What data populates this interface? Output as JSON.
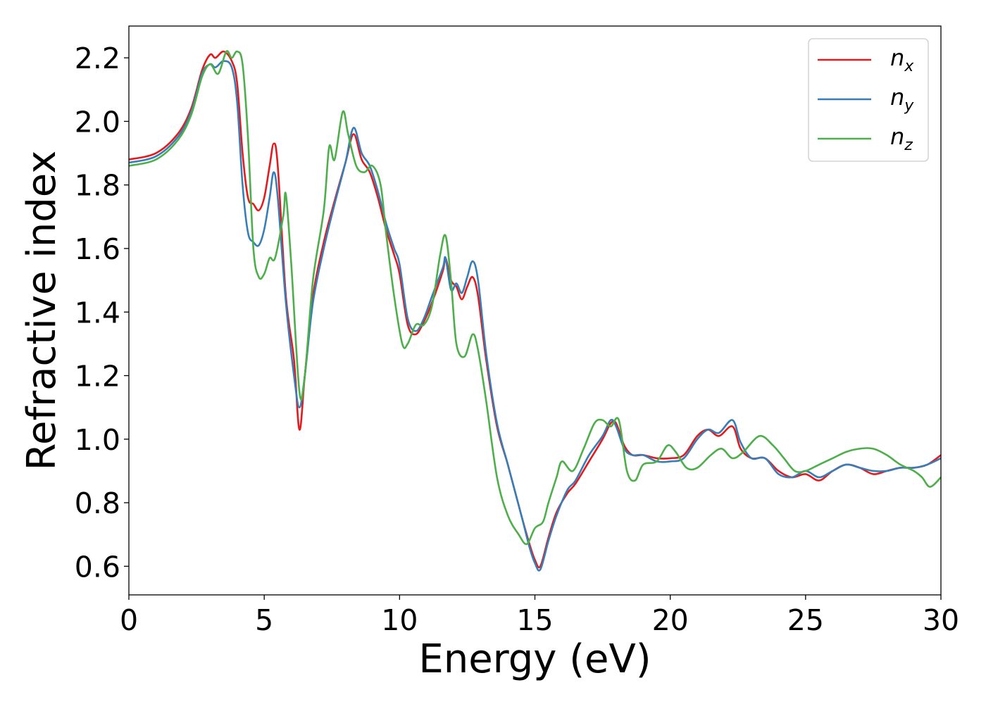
{
  "chart_data": {
    "type": "line",
    "title": "",
    "xlabel": "Energy (eV)",
    "ylabel": "Refractive index",
    "xlim": [
      0,
      30
    ],
    "ylim": [
      0.51,
      2.3
    ],
    "xticks": [
      0,
      5,
      10,
      15,
      20,
      25,
      30
    ],
    "xtick_labels": [
      "0",
      "5",
      "10",
      "15",
      "20",
      "25",
      "30"
    ],
    "yticks": [
      0.6,
      0.8,
      1.0,
      1.2,
      1.4,
      1.6,
      1.8,
      2.0,
      2.2
    ],
    "ytick_labels": [
      "0.6",
      "0.8",
      "1.0",
      "1.2",
      "1.4",
      "1.6",
      "1.8",
      "2.0",
      "2.2"
    ],
    "grid": false,
    "legend_position": "top-right",
    "series": [
      {
        "name": "n_x",
        "legend_base": "n",
        "legend_sub": "x",
        "color": "#e41a1c",
        "points": [
          [
            0,
            1.88
          ],
          [
            1,
            1.9
          ],
          [
            1.8,
            1.96
          ],
          [
            2.3,
            2.04
          ],
          [
            2.7,
            2.16
          ],
          [
            3.0,
            2.21
          ],
          [
            3.2,
            2.2
          ],
          [
            3.5,
            2.22
          ],
          [
            3.8,
            2.19
          ],
          [
            4.0,
            2.12
          ],
          [
            4.2,
            1.9
          ],
          [
            4.4,
            1.76
          ],
          [
            4.6,
            1.74
          ],
          [
            4.8,
            1.72
          ],
          [
            5.0,
            1.76
          ],
          [
            5.2,
            1.86
          ],
          [
            5.35,
            1.93
          ],
          [
            5.5,
            1.86
          ],
          [
            5.8,
            1.45
          ],
          [
            6.1,
            1.25
          ],
          [
            6.3,
            1.03
          ],
          [
            6.5,
            1.2
          ],
          [
            6.8,
            1.45
          ],
          [
            7.2,
            1.62
          ],
          [
            7.6,
            1.75
          ],
          [
            8.0,
            1.87
          ],
          [
            8.3,
            1.96
          ],
          [
            8.6,
            1.88
          ],
          [
            8.9,
            1.84
          ],
          [
            9.2,
            1.76
          ],
          [
            9.5,
            1.66
          ],
          [
            9.8,
            1.58
          ],
          [
            10.0,
            1.52
          ],
          [
            10.3,
            1.36
          ],
          [
            10.6,
            1.33
          ],
          [
            10.9,
            1.37
          ],
          [
            11.2,
            1.43
          ],
          [
            11.6,
            1.53
          ],
          [
            11.7,
            1.57
          ],
          [
            11.9,
            1.5
          ],
          [
            12.1,
            1.48
          ],
          [
            12.3,
            1.44
          ],
          [
            12.5,
            1.48
          ],
          [
            12.7,
            1.51
          ],
          [
            12.9,
            1.45
          ],
          [
            13.2,
            1.25
          ],
          [
            13.6,
            1.04
          ],
          [
            14.0,
            0.92
          ],
          [
            14.5,
            0.76
          ],
          [
            14.8,
            0.67
          ],
          [
            15.0,
            0.62
          ],
          [
            15.2,
            0.6
          ],
          [
            15.5,
            0.69
          ],
          [
            15.8,
            0.77
          ],
          [
            16.2,
            0.83
          ],
          [
            16.5,
            0.86
          ],
          [
            17.0,
            0.93
          ],
          [
            17.5,
            1.0
          ],
          [
            17.8,
            1.05
          ],
          [
            18.0,
            1.05
          ],
          [
            18.3,
            0.98
          ],
          [
            18.6,
            0.95
          ],
          [
            19.0,
            0.95
          ],
          [
            19.5,
            0.94
          ],
          [
            20.0,
            0.94
          ],
          [
            20.5,
            0.95
          ],
          [
            21.0,
            1.01
          ],
          [
            21.4,
            1.03
          ],
          [
            21.8,
            1.01
          ],
          [
            22.3,
            1.04
          ],
          [
            22.6,
            0.97
          ],
          [
            23.0,
            0.94
          ],
          [
            23.5,
            0.94
          ],
          [
            24.0,
            0.9
          ],
          [
            24.5,
            0.88
          ],
          [
            25.0,
            0.89
          ],
          [
            25.5,
            0.87
          ],
          [
            26.0,
            0.9
          ],
          [
            26.5,
            0.92
          ],
          [
            27.0,
            0.91
          ],
          [
            27.5,
            0.89
          ],
          [
            28.0,
            0.9
          ],
          [
            28.5,
            0.91
          ],
          [
            29.0,
            0.91
          ],
          [
            29.5,
            0.92
          ],
          [
            30.0,
            0.95
          ]
        ]
      },
      {
        "name": "n_y",
        "legend_base": "n",
        "legend_sub": "y",
        "color": "#377eb8",
        "points": [
          [
            0,
            1.87
          ],
          [
            1,
            1.89
          ],
          [
            1.8,
            1.95
          ],
          [
            2.3,
            2.03
          ],
          [
            2.7,
            2.15
          ],
          [
            3.0,
            2.18
          ],
          [
            3.2,
            2.17
          ],
          [
            3.5,
            2.19
          ],
          [
            3.8,
            2.17
          ],
          [
            4.0,
            2.06
          ],
          [
            4.2,
            1.8
          ],
          [
            4.4,
            1.65
          ],
          [
            4.6,
            1.62
          ],
          [
            4.8,
            1.61
          ],
          [
            5.0,
            1.66
          ],
          [
            5.2,
            1.76
          ],
          [
            5.35,
            1.84
          ],
          [
            5.5,
            1.76
          ],
          [
            5.8,
            1.43
          ],
          [
            6.1,
            1.2
          ],
          [
            6.3,
            1.1
          ],
          [
            6.5,
            1.2
          ],
          [
            6.8,
            1.43
          ],
          [
            7.2,
            1.6
          ],
          [
            7.6,
            1.74
          ],
          [
            8.0,
            1.87
          ],
          [
            8.3,
            1.98
          ],
          [
            8.6,
            1.9
          ],
          [
            8.9,
            1.86
          ],
          [
            9.2,
            1.78
          ],
          [
            9.5,
            1.68
          ],
          [
            9.8,
            1.6
          ],
          [
            10.0,
            1.55
          ],
          [
            10.3,
            1.38
          ],
          [
            10.6,
            1.34
          ],
          [
            10.9,
            1.38
          ],
          [
            11.2,
            1.45
          ],
          [
            11.6,
            1.54
          ],
          [
            11.7,
            1.57
          ],
          [
            11.9,
            1.47
          ],
          [
            12.1,
            1.49
          ],
          [
            12.3,
            1.46
          ],
          [
            12.5,
            1.51
          ],
          [
            12.7,
            1.56
          ],
          [
            12.9,
            1.5
          ],
          [
            13.2,
            1.27
          ],
          [
            13.6,
            1.05
          ],
          [
            14.0,
            0.92
          ],
          [
            14.5,
            0.76
          ],
          [
            14.8,
            0.66
          ],
          [
            15.0,
            0.61
          ],
          [
            15.2,
            0.59
          ],
          [
            15.5,
            0.68
          ],
          [
            15.8,
            0.76
          ],
          [
            16.2,
            0.84
          ],
          [
            16.5,
            0.87
          ],
          [
            17.0,
            0.95
          ],
          [
            17.5,
            1.01
          ],
          [
            17.8,
            1.06
          ],
          [
            18.0,
            1.04
          ],
          [
            18.3,
            0.97
          ],
          [
            18.6,
            0.95
          ],
          [
            19.0,
            0.95
          ],
          [
            19.5,
            0.93
          ],
          [
            20.0,
            0.93
          ],
          [
            20.5,
            0.94
          ],
          [
            21.0,
            1.0
          ],
          [
            21.4,
            1.03
          ],
          [
            21.8,
            1.02
          ],
          [
            22.3,
            1.06
          ],
          [
            22.6,
            0.99
          ],
          [
            23.0,
            0.94
          ],
          [
            23.5,
            0.94
          ],
          [
            24.0,
            0.89
          ],
          [
            24.5,
            0.88
          ],
          [
            25.0,
            0.9
          ],
          [
            25.5,
            0.88
          ],
          [
            26.0,
            0.9
          ],
          [
            26.5,
            0.92
          ],
          [
            27.0,
            0.91
          ],
          [
            27.5,
            0.9
          ],
          [
            28.0,
            0.9
          ],
          [
            28.5,
            0.91
          ],
          [
            29.0,
            0.91
          ],
          [
            29.5,
            0.92
          ],
          [
            30.0,
            0.94
          ]
        ]
      },
      {
        "name": "n_z",
        "legend_base": "n",
        "legend_sub": "z",
        "color": "#4daf4a",
        "points": [
          [
            0,
            1.86
          ],
          [
            1,
            1.88
          ],
          [
            1.8,
            1.94
          ],
          [
            2.3,
            2.02
          ],
          [
            2.7,
            2.14
          ],
          [
            3.0,
            2.18
          ],
          [
            3.3,
            2.15
          ],
          [
            3.6,
            2.22
          ],
          [
            3.8,
            2.2
          ],
          [
            4.0,
            2.22
          ],
          [
            4.2,
            2.18
          ],
          [
            4.4,
            1.95
          ],
          [
            4.6,
            1.6
          ],
          [
            4.8,
            1.51
          ],
          [
            5.0,
            1.52
          ],
          [
            5.2,
            1.57
          ],
          [
            5.4,
            1.57
          ],
          [
            5.7,
            1.7
          ],
          [
            5.8,
            1.77
          ],
          [
            6.0,
            1.55
          ],
          [
            6.3,
            1.15
          ],
          [
            6.5,
            1.2
          ],
          [
            6.8,
            1.5
          ],
          [
            7.2,
            1.72
          ],
          [
            7.4,
            1.92
          ],
          [
            7.6,
            1.88
          ],
          [
            7.9,
            2.03
          ],
          [
            8.1,
            1.96
          ],
          [
            8.4,
            1.86
          ],
          [
            8.7,
            1.84
          ],
          [
            9.0,
            1.86
          ],
          [
            9.3,
            1.8
          ],
          [
            9.5,
            1.65
          ],
          [
            9.8,
            1.45
          ],
          [
            10.1,
            1.3
          ],
          [
            10.3,
            1.3
          ],
          [
            10.6,
            1.36
          ],
          [
            10.9,
            1.36
          ],
          [
            11.2,
            1.42
          ],
          [
            11.5,
            1.58
          ],
          [
            11.7,
            1.64
          ],
          [
            11.9,
            1.5
          ],
          [
            12.1,
            1.3
          ],
          [
            12.4,
            1.26
          ],
          [
            12.7,
            1.33
          ],
          [
            12.9,
            1.28
          ],
          [
            13.2,
            1.12
          ],
          [
            13.6,
            0.88
          ],
          [
            14.0,
            0.76
          ],
          [
            14.4,
            0.7
          ],
          [
            14.7,
            0.67
          ],
          [
            15.0,
            0.72
          ],
          [
            15.3,
            0.74
          ],
          [
            15.5,
            0.8
          ],
          [
            15.8,
            0.88
          ],
          [
            16.0,
            0.93
          ],
          [
            16.4,
            0.9
          ],
          [
            16.8,
            0.97
          ],
          [
            17.2,
            1.05
          ],
          [
            17.5,
            1.06
          ],
          [
            17.8,
            1.04
          ],
          [
            18.1,
            1.06
          ],
          [
            18.4,
            0.9
          ],
          [
            18.7,
            0.87
          ],
          [
            19.0,
            0.92
          ],
          [
            19.5,
            0.93
          ],
          [
            19.9,
            0.98
          ],
          [
            20.2,
            0.96
          ],
          [
            20.6,
            0.91
          ],
          [
            21.0,
            0.91
          ],
          [
            21.5,
            0.95
          ],
          [
            21.9,
            0.97
          ],
          [
            22.3,
            0.94
          ],
          [
            22.7,
            0.96
          ],
          [
            23.3,
            1.01
          ],
          [
            23.8,
            0.98
          ],
          [
            24.2,
            0.94
          ],
          [
            24.6,
            0.9
          ],
          [
            25.0,
            0.9
          ],
          [
            25.5,
            0.92
          ],
          [
            26.0,
            0.94
          ],
          [
            26.5,
            0.96
          ],
          [
            27.0,
            0.97
          ],
          [
            27.5,
            0.97
          ],
          [
            28.0,
            0.95
          ],
          [
            28.5,
            0.92
          ],
          [
            29.0,
            0.9
          ],
          [
            29.3,
            0.88
          ],
          [
            29.6,
            0.85
          ],
          [
            30.0,
            0.88
          ]
        ]
      }
    ]
  }
}
